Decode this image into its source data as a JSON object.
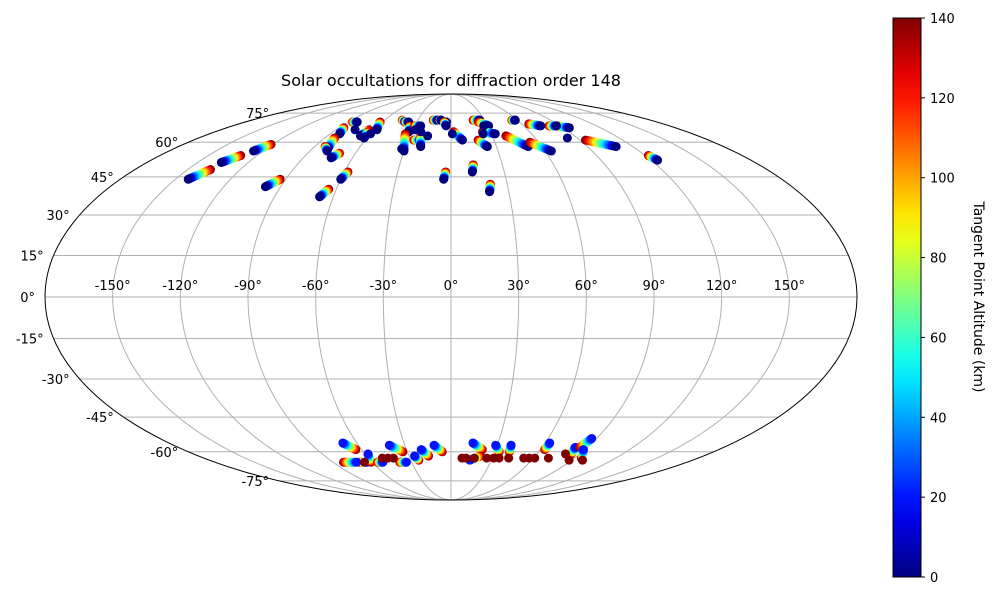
{
  "chart_data": {
    "type": "scatter",
    "projection": "mollweide",
    "title": "Solar occultations for diffraction order 148",
    "grid": true,
    "lon_ticks": [
      -150,
      -120,
      -90,
      -60,
      -30,
      0,
      30,
      60,
      90,
      120,
      150
    ],
    "lon_tick_labels": [
      "-150°",
      "-120°",
      "-90°",
      "-60°",
      "-30°",
      "0°",
      "30°",
      "60°",
      "90°",
      "120°",
      "150°"
    ],
    "lat_ticks": [
      -75,
      -60,
      -45,
      -30,
      -15,
      0,
      15,
      30,
      45,
      60,
      75
    ],
    "lat_tick_labels": [
      "-75°",
      "-60°",
      "-45°",
      "-30°",
      "-15°",
      "0°",
      "15°",
      "30°",
      "45°",
      "60°",
      "75°"
    ],
    "colorbar": {
      "label": "Tangent Point Altitude (km)",
      "colormap": "jet",
      "range": [
        0,
        140
      ],
      "ticks": [
        0,
        20,
        40,
        60,
        80,
        100,
        120,
        140
      ],
      "tick_labels": [
        "0",
        "20",
        "40",
        "60",
        "80",
        "100",
        "120",
        "140"
      ]
    },
    "tracks": [
      {
        "start": [
          -143,
          44
        ],
        "end": [
          -137,
          48
        ],
        "alt_start": 0,
        "alt_end": 140
      },
      {
        "start": [
          -136,
          51
        ],
        "end": [
          -130,
          54
        ],
        "alt_start": 0,
        "alt_end": 140
      },
      {
        "start": [
          -126,
          56
        ],
        "end": [
          -121,
          59
        ],
        "alt_start": 0,
        "alt_end": 140
      },
      {
        "start": [
          -98,
          41
        ],
        "end": [
          -93,
          44
        ],
        "alt_start": 0,
        "alt_end": 140
      },
      {
        "start": [
          -83,
          64
        ],
        "end": [
          -86,
          67
        ],
        "alt_start": 0,
        "alt_end": 140
      },
      {
        "start": [
          -80,
          57
        ],
        "end": [
          -83,
          62
        ],
        "alt_start": 0,
        "alt_end": 140
      },
      {
        "start": [
          -79,
          56
        ],
        "end": [
          -83,
          58
        ],
        "alt_start": 0,
        "alt_end": 140
      },
      {
        "start": [
          -73,
          53
        ],
        "end": [
          -70,
          55
        ],
        "alt_start": 0,
        "alt_end": 140
      },
      {
        "start": [
          -82,
          70
        ],
        "end": [
          -86,
          70
        ],
        "alt_start": 0,
        "alt_end": 140
      },
      {
        "start": [
          -67,
          37
        ],
        "end": [
          -64,
          40
        ],
        "alt_start": 0,
        "alt_end": 140
      },
      {
        "start": [
          -60,
          44
        ],
        "end": [
          -58,
          47
        ],
        "alt_start": 0,
        "alt_end": 140
      },
      {
        "start": [
          -66,
          63
        ],
        "end": [
          -64,
          66
        ],
        "alt_start": 0,
        "alt_end": 140
      },
      {
        "start": [
          -62,
          62
        ],
        "end": [
          -63,
          65
        ],
        "alt_start": 0,
        "alt_end": 140
      },
      {
        "start": [
          -58,
          66
        ],
        "end": [
          -62,
          70
        ],
        "alt_start": 0,
        "alt_end": 140
      },
      {
        "start": [
          -40,
          70
        ],
        "end": [
          -44,
          71
        ],
        "alt_start": 0,
        "alt_end": 140
      },
      {
        "start": [
          -37,
          70
        ],
        "end": [
          -40,
          70
        ],
        "alt_start": 0,
        "alt_end": 140
      },
      {
        "start": [
          -32,
          65
        ],
        "end": [
          -34,
          68
        ],
        "alt_start": 0,
        "alt_end": 140
      },
      {
        "start": [
          -30,
          56
        ],
        "end": [
          -34,
          64
        ],
        "alt_start": 0,
        "alt_end": 140
      },
      {
        "start": [
          -25,
          68
        ],
        "end": [
          -30,
          68
        ],
        "alt_start": 0,
        "alt_end": 140
      },
      {
        "start": [
          -21,
          61
        ],
        "end": [
          -26,
          61
        ],
        "alt_start": 0,
        "alt_end": 140
      },
      {
        "start": [
          -20,
          58
        ],
        "end": [
          -22,
          63
        ],
        "alt_start": 0,
        "alt_end": 140
      },
      {
        "start": [
          -12,
          71
        ],
        "end": [
          -16,
          71
        ],
        "alt_start": 0,
        "alt_end": 140
      },
      {
        "start": [
          -9,
          71
        ],
        "end": [
          -10,
          71
        ],
        "alt_start": 0,
        "alt_end": 140
      },
      {
        "start": [
          -4,
          70
        ],
        "end": [
          -6,
          70
        ],
        "alt_start": 0,
        "alt_end": 140
      },
      {
        "start": [
          -4,
          68
        ],
        "end": [
          -6,
          70
        ],
        "alt_start": 0,
        "alt_end": 140
      },
      {
        "start": [
          8,
          61
        ],
        "end": [
          2,
          65
        ],
        "alt_start": 0,
        "alt_end": 140
      },
      {
        "start": [
          -4,
          44
        ],
        "end": [
          -3,
          47
        ],
        "alt_start": 0,
        "alt_end": 140
      },
      {
        "start": [
          12,
          47
        ],
        "end": [
          13,
          50
        ],
        "alt_start": 0,
        "alt_end": 140
      },
      {
        "start": [
          20,
          39
        ],
        "end": [
          21,
          42
        ],
        "alt_start": 0,
        "alt_end": 140
      },
      {
        "start": [
          26,
          71
        ],
        "end": [
          20,
          71
        ],
        "alt_start": 0,
        "alt_end": 140
      },
      {
        "start": [
          31,
          68
        ],
        "end": [
          24,
          70
        ],
        "alt_start": 0,
        "alt_end": 140
      },
      {
        "start": [
          33,
          64
        ],
        "end": [
          24,
          65
        ],
        "alt_start": 0,
        "alt_end": 140
      },
      {
        "start": [
          24,
          58
        ],
        "end": [
          19,
          61
        ],
        "alt_start": 0,
        "alt_end": 140
      },
      {
        "start": [
          51,
          58
        ],
        "end": [
          40,
          63
        ],
        "alt_start": 0,
        "alt_end": 140
      },
      {
        "start": [
          64,
          56
        ],
        "end": [
          54,
          60
        ],
        "alt_start": 0,
        "alt_end": 140
      },
      {
        "start": [
          58,
          71
        ],
        "end": [
          55,
          71
        ],
        "alt_start": 0,
        "alt_end": 140
      },
      {
        "start": [
          74,
          68
        ],
        "end": [
          66,
          69
        ],
        "alt_start": 0,
        "alt_end": 140
      },
      {
        "start": [
          95,
          67
        ],
        "end": [
          87,
          68
        ],
        "alt_start": 0,
        "alt_end": 140
      },
      {
        "start": [
          87,
          68
        ],
        "end": [
          81,
          68
        ],
        "alt_start": 0,
        "alt_end": 140
      },
      {
        "start": [
          109,
          58
        ],
        "end": [
          94,
          61
        ],
        "alt_start": 0,
        "alt_end": 140
      },
      {
        "start": [
          124,
          52
        ],
        "end": [
          122,
          54
        ],
        "alt_start": 0,
        "alt_end": 140
      },
      {
        "start": [
          -64,
          -65
        ],
        "end": [
          -70,
          -65
        ],
        "alt_start": 20,
        "alt_end": 140
      },
      {
        "start": [
          -72,
          -65
        ],
        "end": [
          -82,
          -65
        ],
        "alt_start": 20,
        "alt_end": 140
      },
      {
        "start": [
          -69,
          -56
        ],
        "end": [
          -64,
          -59
        ],
        "alt_start": 20,
        "alt_end": 140
      },
      {
        "start": [
          -58,
          -61
        ],
        "end": [
          -61,
          -65
        ],
        "alt_start": 20,
        "alt_end": 140
      },
      {
        "start": [
          -52,
          -65
        ],
        "end": [
          -56,
          -65
        ],
        "alt_start": 20,
        "alt_end": 140
      },
      {
        "start": [
          -40,
          -57
        ],
        "end": [
          -33,
          -60
        ],
        "alt_start": 20,
        "alt_end": 140
      },
      {
        "start": [
          -34,
          -65
        ],
        "end": [
          -39,
          -65
        ],
        "alt_start": 20,
        "alt_end": 140
      },
      {
        "start": [
          -20,
          -59
        ],
        "end": [
          -16,
          -62
        ],
        "alt_start": 20,
        "alt_end": 140
      },
      {
        "start": [
          -26,
          -62
        ],
        "end": [
          -24,
          -64
        ],
        "alt_start": 20,
        "alt_end": 140
      },
      {
        "start": [
          -11,
          -57
        ],
        "end": [
          -6,
          -60
        ],
        "alt_start": 20,
        "alt_end": 140
      },
      {
        "start": [
          14,
          -56
        ],
        "end": [
          21,
          -59
        ],
        "alt_start": 20,
        "alt_end": 140
      },
      {
        "start": [
          14,
          -64
        ],
        "end": [
          21,
          -62
        ],
        "alt_start": 20,
        "alt_end": 140
      },
      {
        "start": [
          29,
          -57
        ],
        "end": [
          33,
          -60
        ],
        "alt_start": 20,
        "alt_end": 140
      },
      {
        "start": [
          39,
          -57
        ],
        "end": [
          40,
          -60
        ],
        "alt_start": 20,
        "alt_end": 140
      },
      {
        "start": [
          63,
          -56
        ],
        "end": [
          63,
          -59
        ],
        "alt_start": 20,
        "alt_end": 140
      },
      {
        "start": [
          82,
          -58
        ],
        "end": [
          84,
          -61
        ],
        "alt_start": 20,
        "alt_end": 140
      },
      {
        "start": [
          87,
          -54
        ],
        "end": [
          85,
          -58
        ],
        "alt_start": 20,
        "alt_end": 140
      },
      {
        "start": [
          89,
          -59
        ],
        "end": [
          95,
          -63
        ],
        "alt_start": 20,
        "alt_end": 140
      }
    ],
    "points": [
      {
        "lon": -75,
        "lat": 66,
        "alt": 0
      },
      {
        "lon": -60,
        "lat": 64,
        "alt": 0
      },
      {
        "lon": -32,
        "lat": 57,
        "alt": 0
      },
      {
        "lon": -28,
        "lat": 66,
        "alt": 0
      },
      {
        "lon": -23,
        "lat": 65,
        "alt": 0
      },
      {
        "lon": -17,
        "lat": 63,
        "alt": 0
      },
      {
        "lon": 1,
        "lat": 64,
        "alt": 0
      },
      {
        "lon": 24,
        "lat": 64,
        "alt": 0
      },
      {
        "lon": 27,
        "lat": 68,
        "alt": 0
      },
      {
        "lon": 83,
        "lat": 62,
        "alt": 0
      },
      {
        "lon": -66,
        "lat": -65,
        "alt": 140
      },
      {
        "lon": -50,
        "lat": -63,
        "alt": 140
      },
      {
        "lon": -46,
        "lat": -63,
        "alt": 140
      },
      {
        "lon": -42,
        "lat": -63,
        "alt": 140
      },
      {
        "lon": 8,
        "lat": -63,
        "alt": 140
      },
      {
        "lon": 11,
        "lat": -63,
        "alt": 140
      },
      {
        "lon": 17,
        "lat": -63,
        "alt": 140
      },
      {
        "lon": 26,
        "lat": -63,
        "alt": 140
      },
      {
        "lon": 31,
        "lat": -63,
        "alt": 140
      },
      {
        "lon": 35,
        "lat": -63,
        "alt": 140
      },
      {
        "lon": 42,
        "lat": -63,
        "alt": 140
      },
      {
        "lon": 53,
        "lat": -63,
        "alt": 140
      },
      {
        "lon": 57,
        "lat": -63,
        "alt": 140
      },
      {
        "lon": 61,
        "lat": -63,
        "alt": 140
      },
      {
        "lon": 71,
        "lat": -63,
        "alt": 140
      },
      {
        "lon": 80,
        "lat": -61,
        "alt": 140
      },
      {
        "lon": 88,
        "lat": -64,
        "alt": 140
      },
      {
        "lon": 98,
        "lat": -64,
        "alt": 140
      }
    ]
  }
}
